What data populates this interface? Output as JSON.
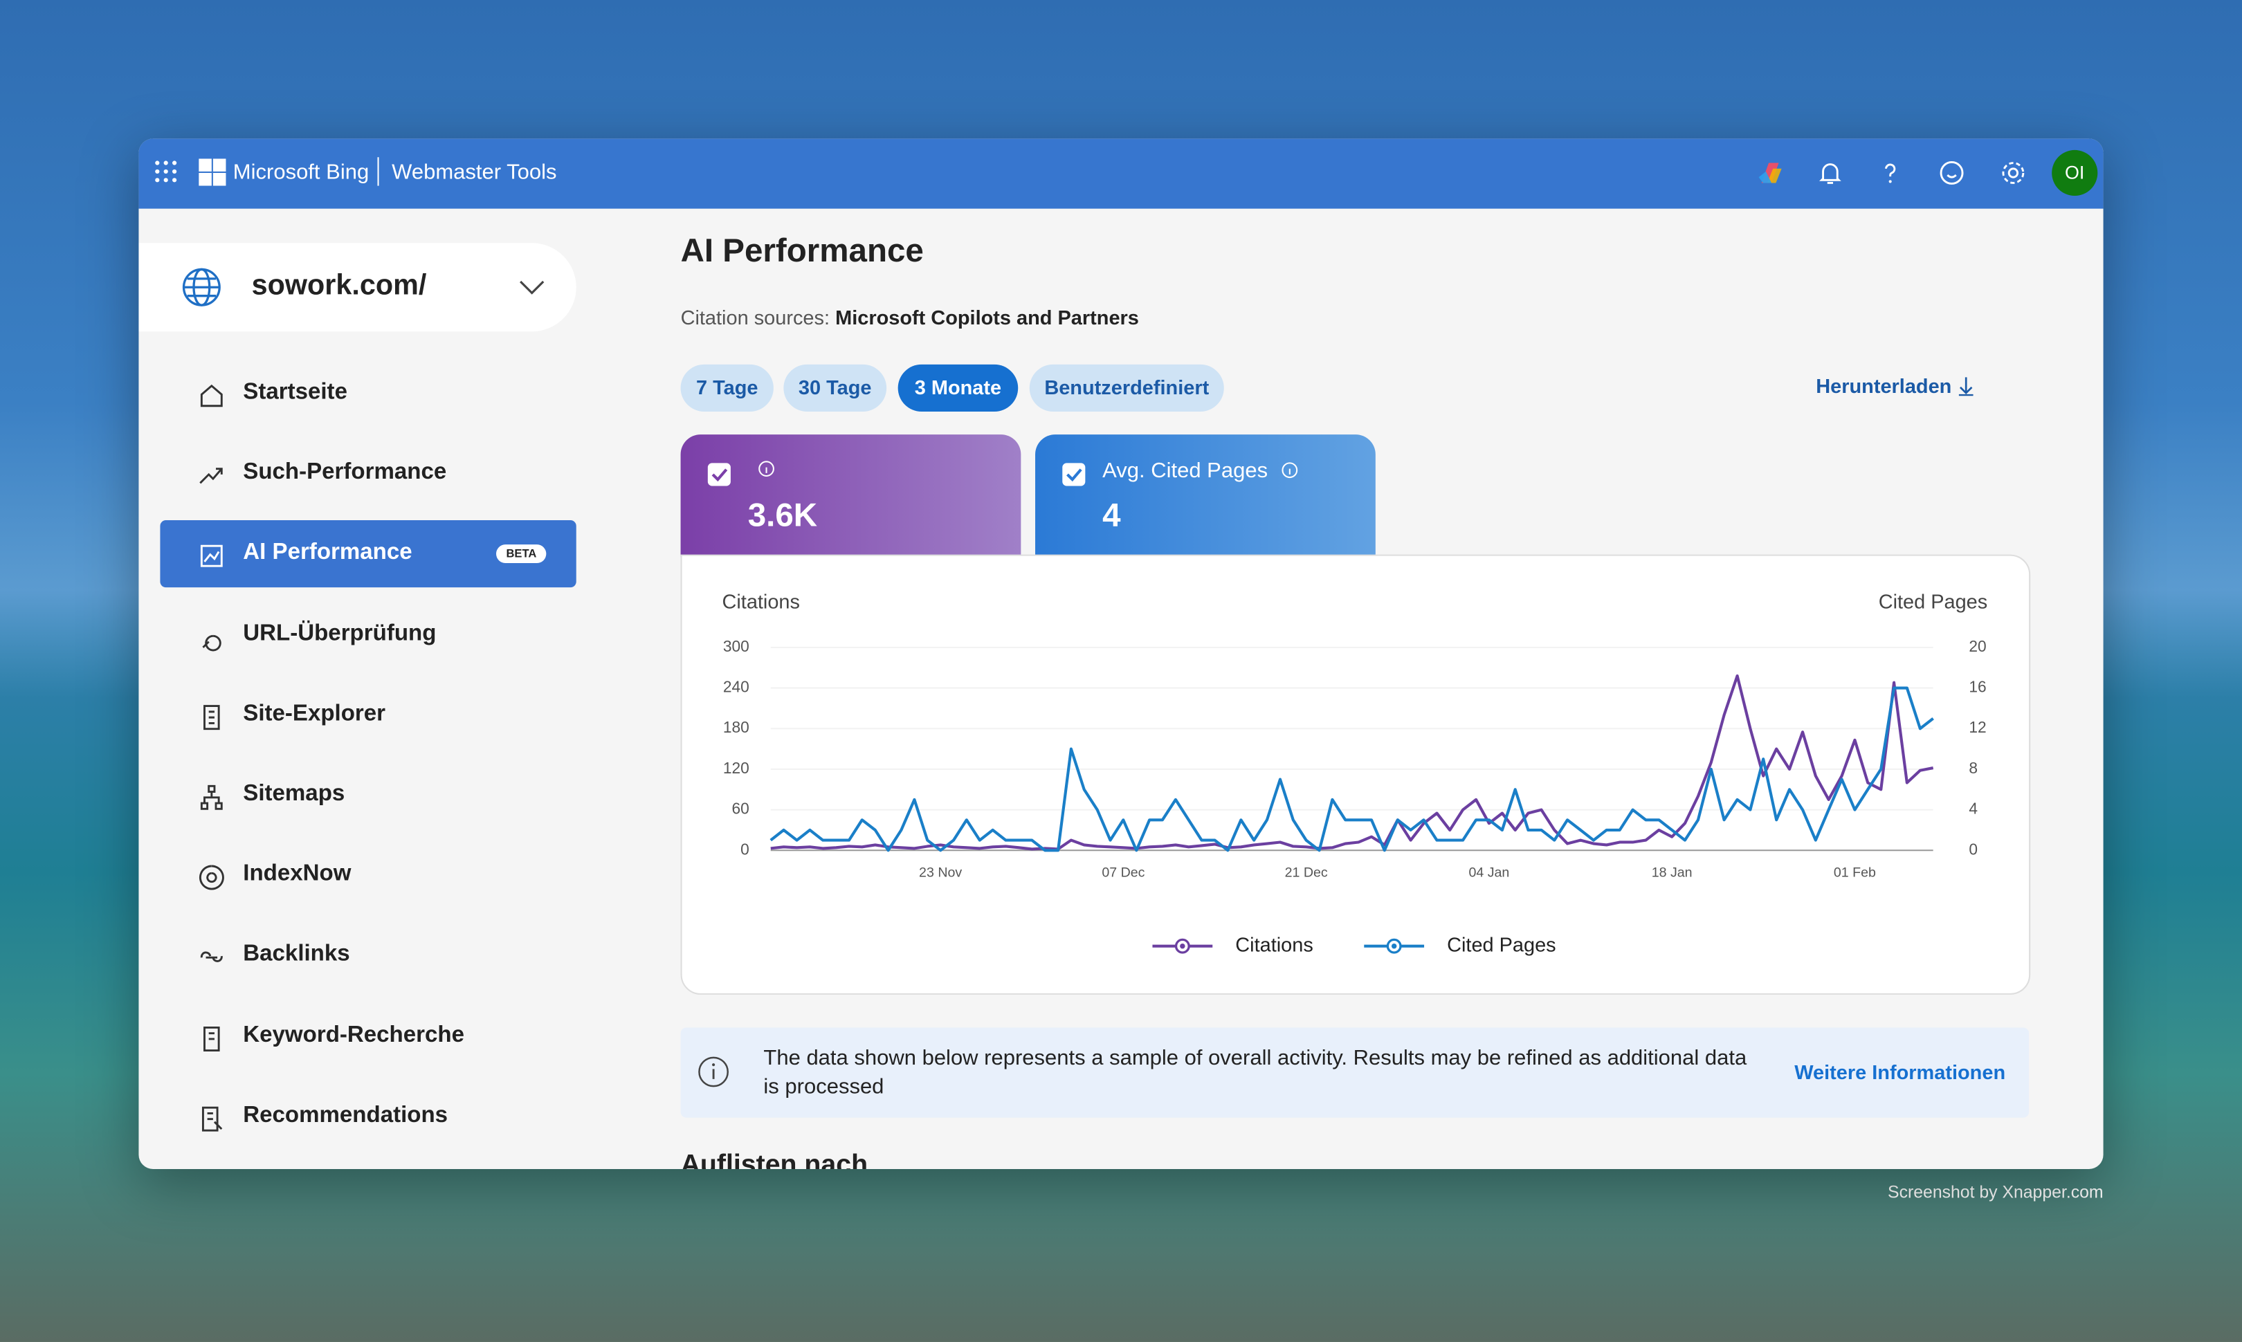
{
  "header": {
    "brand": "Microsoft Bing",
    "product": "Webmaster Tools",
    "avatar": "OI"
  },
  "sidebar": {
    "site": "sowork.com/",
    "badge": "BETA",
    "nav": [
      "Startseite",
      "Such-Performance",
      "AI Performance",
      "URL-Überprüfung",
      "Site-Explorer",
      "Sitemaps",
      "IndexNow",
      "Backlinks",
      "Keyword-Recherche",
      "Recommendations"
    ]
  },
  "main": {
    "title": "AI Performance",
    "citation_label": "Citation sources:",
    "citation_value": "Microsoft Copilots and Partners",
    "ranges": [
      "7 Tage",
      "30 Tage",
      "3 Monate",
      "Benutzerdefiniert"
    ],
    "download": "Herunterladen",
    "cards": [
      {
        "value": "3.6K"
      },
      {
        "label": "Avg. Cited Pages",
        "value": 4
      }
    ],
    "notice": {
      "text": "The data shown below represents a sample of overall activity. Results may be refined as additional data is processed",
      "link": "Weitere Informationen"
    },
    "section_heading": "Auflisten nach"
  },
  "watermark": "Screenshot by Xnapper.com",
  "chart_data": {
    "type": "line",
    "y_label": "Citations",
    "y2_label": "Cited Pages",
    "categories": [
      null,
      null,
      null,
      null,
      null,
      null,
      null,
      null,
      null,
      null,
      null,
      null,
      null,
      "23 Nov",
      null,
      null,
      null,
      null,
      null,
      null,
      null,
      null,
      null,
      null,
      null,
      null,
      null,
      "07 Dec",
      null,
      null,
      null,
      null,
      null,
      null,
      null,
      null,
      null,
      null,
      null,
      null,
      null,
      "21 Dec",
      null,
      null,
      null,
      null,
      null,
      null,
      null,
      null,
      null,
      null,
      null,
      null,
      null,
      "04 Jan",
      null,
      null,
      null,
      null,
      null,
      null,
      null,
      null,
      null,
      null,
      null,
      null,
      null,
      "18 Jan",
      null,
      null,
      null,
      null,
      null,
      null,
      null,
      null,
      null,
      null,
      null,
      null,
      null,
      "01 Feb",
      null,
      null,
      null,
      null,
      null,
      null
    ],
    "ylim": [
      0,
      300
    ],
    "yticks": [
      0,
      60,
      120,
      180,
      240,
      300
    ],
    "y2lim": [
      0,
      20
    ],
    "y2ticks": [
      0,
      4,
      8,
      12,
      16,
      20
    ],
    "grid": true,
    "legend": "bottom",
    "series": [
      {
        "name": "Citations",
        "color": "#6b3fa0",
        "values": [
          3,
          5,
          4,
          5,
          3,
          4,
          6,
          5,
          8,
          5,
          4,
          3,
          6,
          8,
          5,
          4,
          3,
          5,
          6,
          4,
          2,
          3,
          2,
          15,
          8,
          6,
          5,
          4,
          3,
          5,
          6,
          8,
          5,
          7,
          9,
          4,
          5,
          8,
          10,
          12,
          6,
          5,
          3,
          4,
          10,
          12,
          20,
          8,
          45,
          15,
          40,
          55,
          30,
          60,
          75,
          40,
          55,
          30,
          55,
          60,
          30,
          10,
          15,
          10,
          8,
          12,
          12,
          15,
          30,
          20,
          40,
          80,
          130,
          200,
          258,
          180,
          110,
          150,
          120,
          175,
          110,
          75,
          110,
          163,
          100,
          90,
          248,
          100,
          118,
          122
        ]
      },
      {
        "name": "Cited Pages",
        "color": "#1a7fc8",
        "axis": "y2",
        "values": [
          1,
          2,
          1,
          2,
          1,
          1,
          1,
          3,
          2,
          0,
          2,
          5,
          1,
          0,
          1,
          3,
          1,
          2,
          1,
          1,
          1,
          0,
          0,
          10,
          6,
          4,
          1,
          3,
          0,
          3,
          3,
          5,
          3,
          1,
          1,
          0,
          3,
          1,
          3,
          7,
          3,
          1,
          0,
          5,
          3,
          3,
          3,
          0,
          3,
          2,
          3,
          1,
          1,
          1,
          3,
          3,
          2,
          6,
          2,
          2,
          1,
          3,
          2,
          1,
          2,
          2,
          4,
          3,
          3,
          2,
          1,
          3,
          8,
          3,
          5,
          4,
          9,
          3,
          6,
          4,
          1,
          4,
          7,
          4,
          6,
          8,
          16,
          16,
          12,
          13
        ]
      }
    ]
  }
}
